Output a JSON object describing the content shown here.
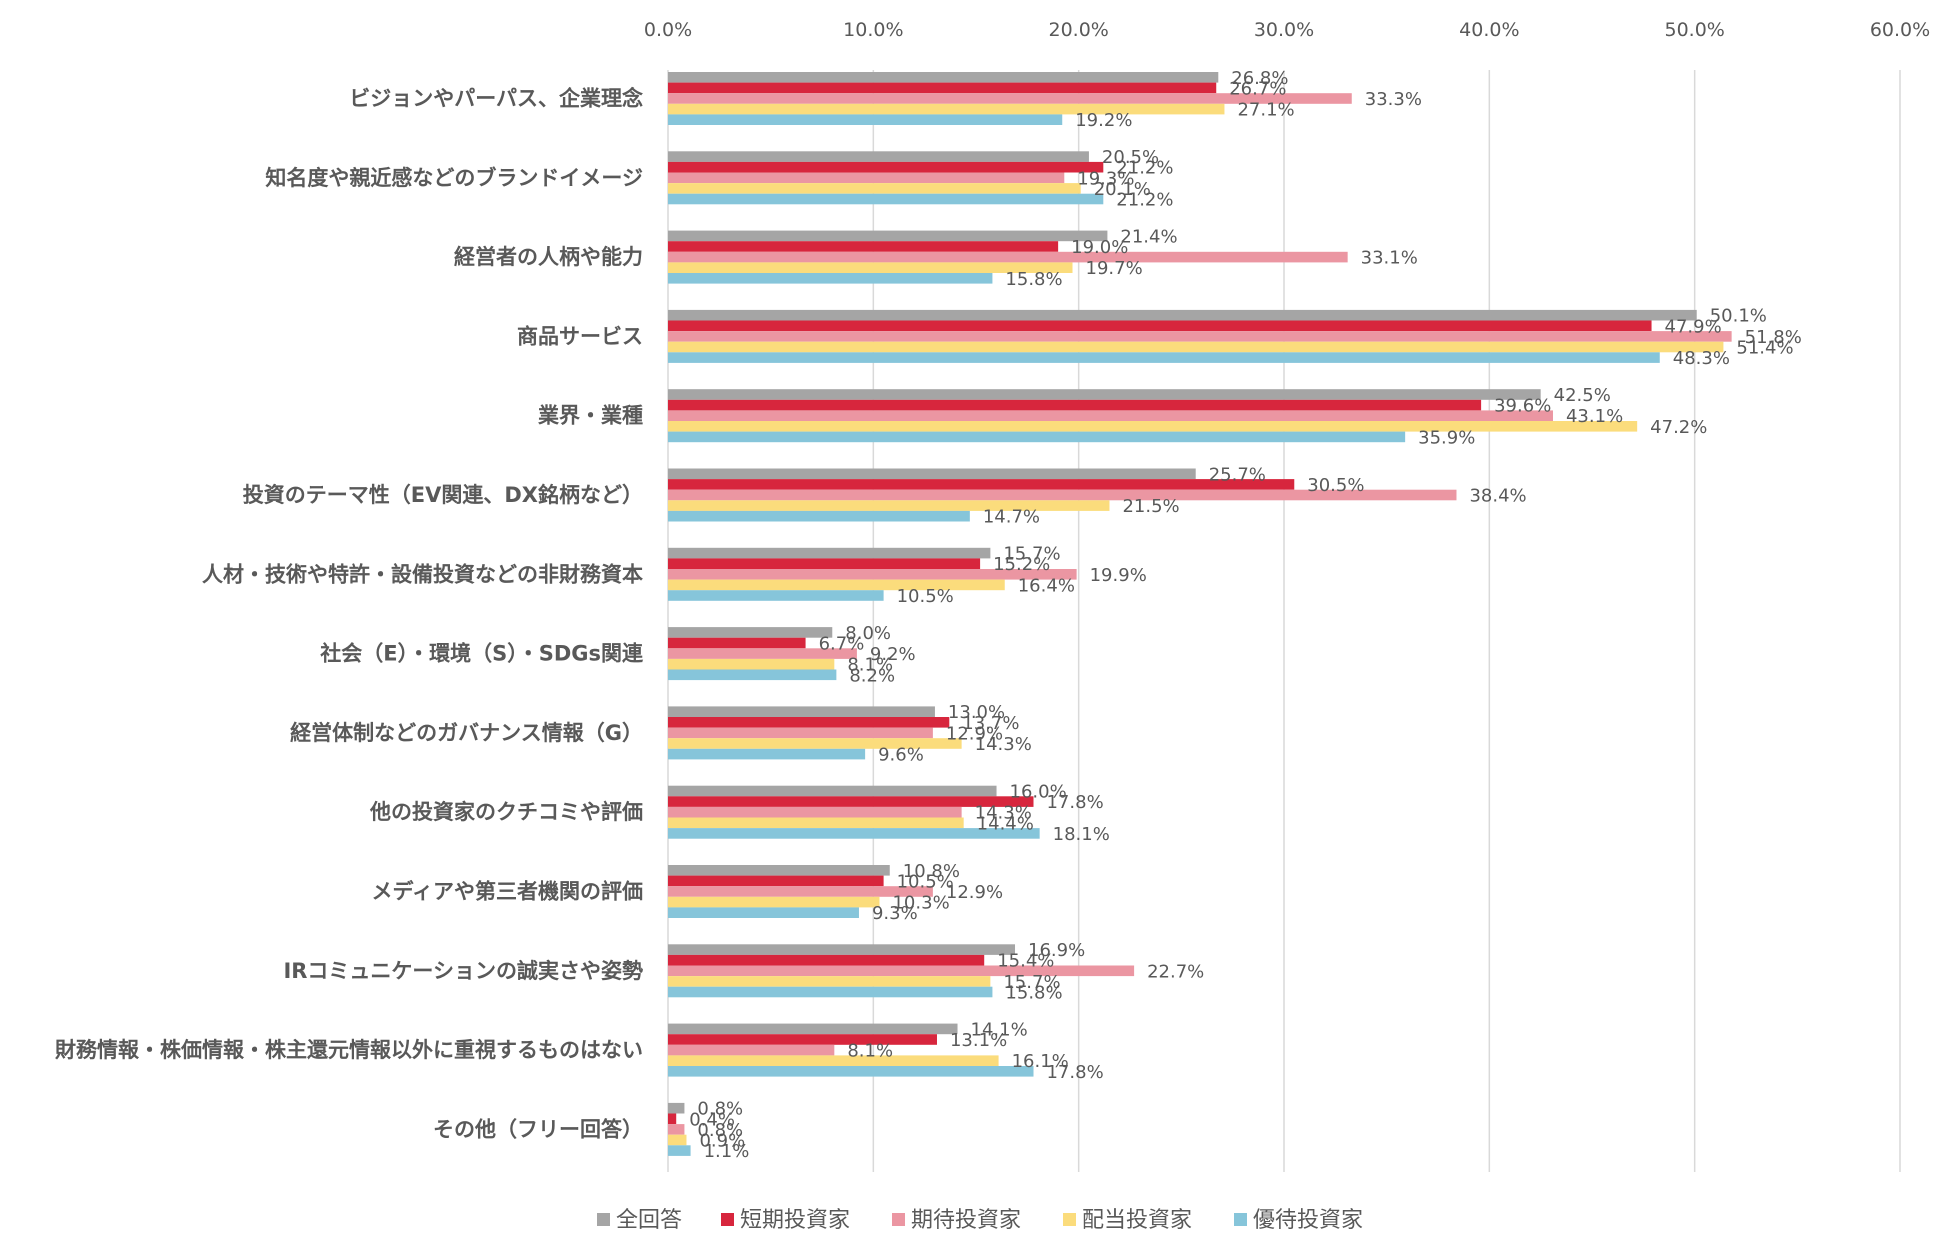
{
  "chart_data": {
    "type": "bar",
    "orientation": "horizontal",
    "title": "",
    "xlabel": "",
    "ylabel": "",
    "xlim": [
      0,
      60
    ],
    "ticks": [
      "0.0%",
      "10.0%",
      "20.0%",
      "30.0%",
      "40.0%",
      "50.0%",
      "60.0%"
    ],
    "grid": true,
    "legend_position": "bottom",
    "categories": [
      "ビジョンやパーパス、企業理念",
      "知名度や親近感などのブランドイメージ",
      "経営者の人柄や能力",
      "商品サービス",
      "業界・業種",
      "投資のテーマ性（EV関連、DX銘柄など）",
      "人材・技術や特許・設備投資などの非財務資本",
      "社会（E）・環境（S）・SDGs関連",
      "経営体制などのガバナンス情報（G）",
      "他の投資家のクチコミや評価",
      "メディアや第三者機関の評価",
      "IRコミュニケーションの誠実さや姿勢",
      "財務情報・株価情報・株主還元情報以外に重視するものはない",
      "その他（フリー回答）"
    ],
    "series": [
      {
        "name": "全回答",
        "color": "#a5a5a5",
        "values": [
          26.8,
          20.5,
          21.4,
          50.1,
          42.5,
          25.7,
          15.7,
          8.0,
          13.0,
          16.0,
          10.8,
          16.9,
          14.1,
          0.8
        ],
        "labels": [
          "26.8%",
          "20.5%",
          "21.4%",
          "50.1%",
          "42.5%",
          "25.7%",
          "15.7%",
          "8.0%",
          "13.0%",
          "16.0%",
          "10.8%",
          "16.9%",
          "14.1%",
          "0.8%"
        ]
      },
      {
        "name": "短期投資家",
        "color": "#d7263d",
        "values": [
          26.7,
          21.2,
          19.0,
          47.9,
          39.6,
          30.5,
          15.2,
          6.7,
          13.7,
          17.8,
          10.5,
          15.4,
          13.1,
          0.4
        ],
        "labels": [
          "26.7%",
          "21.2%",
          "19.0%",
          "47.9%",
          "39.6%",
          "30.5%",
          "15.2%",
          "6.7%",
          "13.7%",
          "17.8%",
          "10.5%",
          "15.4%",
          "13.1%",
          "0.4%"
        ]
      },
      {
        "name": "期待投資家",
        "color": "#eb96a2",
        "values": [
          33.3,
          19.3,
          33.1,
          51.8,
          43.1,
          38.4,
          19.9,
          9.2,
          12.9,
          14.3,
          12.9,
          22.7,
          8.1,
          0.8
        ],
        "labels": [
          "33.3%",
          "19.3%",
          "33.1%",
          "51.8%",
          "43.1%",
          "38.4%",
          "19.9%",
          "9.2%",
          "12.9%",
          "14.3%",
          "12.9%",
          "22.7%",
          "8.1%",
          "0.8%"
        ]
      },
      {
        "name": "配当投資家",
        "color": "#fbdc7c",
        "values": [
          27.1,
          20.1,
          19.7,
          51.4,
          47.2,
          21.5,
          16.4,
          8.1,
          14.3,
          14.4,
          10.3,
          15.7,
          16.1,
          0.9
        ],
        "labels": [
          "27.1%",
          "20.1%",
          "19.7%",
          "51.4%",
          "47.2%",
          "21.5%",
          "16.4%",
          "8.1%",
          "14.3%",
          "14.4%",
          "10.3%",
          "15.7%",
          "16.1%",
          "0.9%"
        ]
      },
      {
        "name": "優待投資家",
        "color": "#86c5da",
        "values": [
          19.2,
          21.2,
          15.8,
          48.3,
          35.9,
          14.7,
          10.5,
          8.2,
          9.6,
          18.1,
          9.3,
          15.8,
          17.8,
          1.1
        ],
        "labels": [
          "19.2%",
          "21.2%",
          "15.8%",
          "48.3%",
          "35.9%",
          "14.7%",
          "10.5%",
          "8.2%",
          "9.6%",
          "18.1%",
          "9.3%",
          "15.8%",
          "17.8%",
          "1.1%"
        ]
      }
    ]
  }
}
